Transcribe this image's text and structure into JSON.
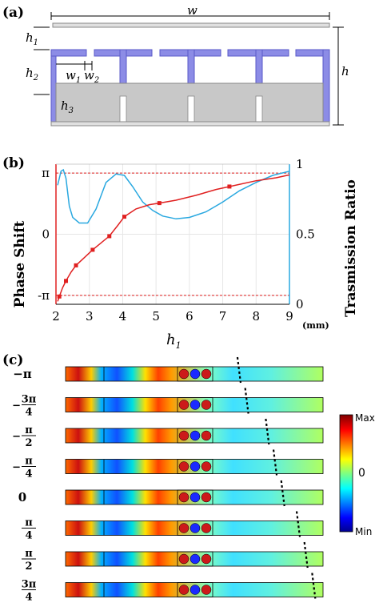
{
  "panel_a": {
    "label": "(a)",
    "dims": {
      "w": "w",
      "h1": "h",
      "h1_sub": "1",
      "h2": "h",
      "h2_sub": "2",
      "h3": "h",
      "h3_sub": "3",
      "h": "h",
      "w1": "w",
      "w1_sub": "1",
      "w2": "w",
      "w2_sub": "2"
    },
    "colors": {
      "metal": "#8c8ce6",
      "metal_edge": "#5a5ac8",
      "substrate": "#c8c8c8",
      "substrate_edge": "#888888"
    }
  },
  "panel_b": {
    "label": "(b)",
    "unit_label": "(mm)",
    "xaxis_sub": "1",
    "colors": {
      "phase": "#e02020",
      "trans": "#29a8e0",
      "ref": "#e02020"
    }
  },
  "chart_data": {
    "type": "line",
    "xlabel": "h",
    "ylabel": "Phase Shift",
    "y2label": "Trasmission Ratio",
    "xlim": [
      2,
      9
    ],
    "x_ticks": [
      "2",
      "3",
      "4",
      "5",
      "6",
      "7",
      "8",
      "9"
    ],
    "ylim": [
      -3.6,
      3.6
    ],
    "y_ticks": [
      {
        "value": 3.1416,
        "label": "π"
      },
      {
        "value": 0,
        "label": "0"
      },
      {
        "value": -3.1416,
        "label": "-π"
      }
    ],
    "y2lim": [
      0,
      1
    ],
    "y2_ticks": [
      {
        "value": 1,
        "label": "1"
      },
      {
        "value": 0.5,
        "label": "0.5"
      },
      {
        "value": 0,
        "label": "0"
      }
    ],
    "reference_lines": [
      3.1416,
      -3.1416
    ],
    "series": [
      {
        "axis": "left",
        "marker": "square",
        "points": [
          {
            "x": 2.1,
            "y": -3.2
          },
          {
            "x": 2.3,
            "y": -2.4
          },
          {
            "x": 2.6,
            "y": -1.6
          },
          {
            "x": 3.1,
            "y": -0.8
          },
          {
            "x": 3.6,
            "y": -0.1
          },
          {
            "x": 4.05,
            "y": 0.9
          },
          {
            "x": 5.1,
            "y": 1.6
          },
          {
            "x": 7.2,
            "y": 2.45
          }
        ],
        "curve": [
          {
            "x": 2.05,
            "y": -3.45
          },
          {
            "x": 2.1,
            "y": -3.2
          },
          {
            "x": 2.2,
            "y": -2.75
          },
          {
            "x": 2.3,
            "y": -2.4
          },
          {
            "x": 2.45,
            "y": -1.95
          },
          {
            "x": 2.6,
            "y": -1.6
          },
          {
            "x": 2.85,
            "y": -1.2
          },
          {
            "x": 3.1,
            "y": -0.8
          },
          {
            "x": 3.35,
            "y": -0.45
          },
          {
            "x": 3.6,
            "y": -0.1
          },
          {
            "x": 3.85,
            "y": 0.45
          },
          {
            "x": 4.05,
            "y": 0.9
          },
          {
            "x": 4.4,
            "y": 1.3
          },
          {
            "x": 4.8,
            "y": 1.52
          },
          {
            "x": 5.1,
            "y": 1.6
          },
          {
            "x": 5.6,
            "y": 1.75
          },
          {
            "x": 6.2,
            "y": 2.0
          },
          {
            "x": 6.8,
            "y": 2.3
          },
          {
            "x": 7.2,
            "y": 2.45
          },
          {
            "x": 8.0,
            "y": 2.75
          },
          {
            "x": 8.6,
            "y": 2.9
          },
          {
            "x": 9.0,
            "y": 3.05
          }
        ]
      },
      {
        "axis": "right",
        "curve": [
          {
            "x": 2.05,
            "y": 0.85
          },
          {
            "x": 2.15,
            "y": 0.95
          },
          {
            "x": 2.22,
            "y": 0.96
          },
          {
            "x": 2.3,
            "y": 0.9
          },
          {
            "x": 2.4,
            "y": 0.7
          },
          {
            "x": 2.5,
            "y": 0.62
          },
          {
            "x": 2.7,
            "y": 0.58
          },
          {
            "x": 2.95,
            "y": 0.58
          },
          {
            "x": 3.2,
            "y": 0.68
          },
          {
            "x": 3.5,
            "y": 0.87
          },
          {
            "x": 3.8,
            "y": 0.93
          },
          {
            "x": 4.05,
            "y": 0.92
          },
          {
            "x": 4.3,
            "y": 0.84
          },
          {
            "x": 4.6,
            "y": 0.73
          },
          {
            "x": 4.9,
            "y": 0.67
          },
          {
            "x": 5.2,
            "y": 0.63
          },
          {
            "x": 5.6,
            "y": 0.61
          },
          {
            "x": 6.0,
            "y": 0.62
          },
          {
            "x": 6.5,
            "y": 0.66
          },
          {
            "x": 7.0,
            "y": 0.73
          },
          {
            "x": 7.5,
            "y": 0.81
          },
          {
            "x": 8.0,
            "y": 0.87
          },
          {
            "x": 8.5,
            "y": 0.92
          },
          {
            "x": 9.0,
            "y": 0.95
          }
        ]
      }
    ]
  },
  "panel_c": {
    "label": "(c)",
    "colorbar": {
      "max": "Max",
      "mid": "0",
      "min": "Min"
    },
    "rows": [
      {
        "num": "",
        "den": "",
        "sign": "−",
        "text": "π",
        "marker_pos": 0.68
      },
      {
        "num": "3π",
        "den": "4",
        "sign": "−",
        "text": "",
        "marker_pos": 0.71
      },
      {
        "num": "π",
        "den": "2",
        "sign": "−",
        "text": "",
        "marker_pos": 0.79
      },
      {
        "num": "π",
        "den": "4",
        "sign": "−",
        "text": "",
        "marker_pos": 0.82
      },
      {
        "num": "",
        "den": "",
        "sign": "",
        "text": "0",
        "marker_pos": 0.85
      },
      {
        "num": "π",
        "den": "4",
        "sign": "",
        "text": "",
        "marker_pos": 0.91
      },
      {
        "num": "π",
        "den": "2",
        "sign": "",
        "text": "",
        "marker_pos": 0.94
      },
      {
        "num": "3π",
        "den": "4",
        "sign": "",
        "text": "",
        "marker_pos": 0.97
      }
    ]
  }
}
